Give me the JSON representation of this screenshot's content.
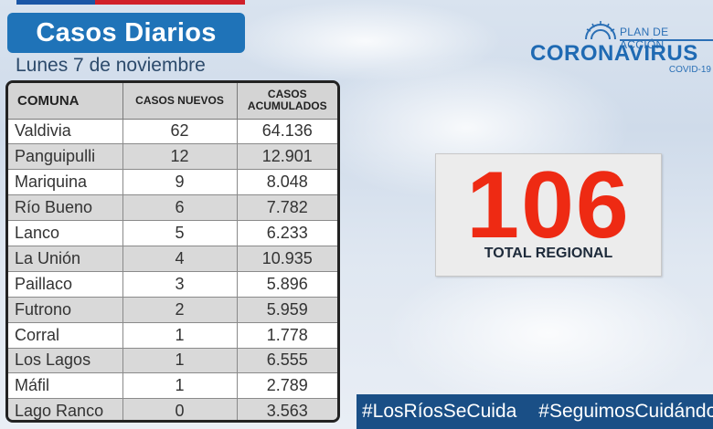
{
  "header": {
    "title": "Casos Diarios",
    "date": "Lunes 7  de noviembre"
  },
  "colors": {
    "title_bg": "#1f73b8",
    "total_number": "#ee2a13",
    "hashtag_bar": "#1a4f86",
    "flag_blue": "#1a56a6",
    "flag_red": "#d0202a"
  },
  "table": {
    "headers": {
      "comuna": "COMUNA",
      "nuevos": "CASOS NUEVOS",
      "acumulados_1": "CASOS",
      "acumulados_2": "ACUMULADOS"
    },
    "rows": [
      {
        "comuna": "Valdivia",
        "nuevos": "62",
        "acumulados": "64.136"
      },
      {
        "comuna": "Panguipulli",
        "nuevos": "12",
        "acumulados": "12.901"
      },
      {
        "comuna": "Mariquina",
        "nuevos": "9",
        "acumulados": "8.048"
      },
      {
        "comuna": "Río Bueno",
        "nuevos": "6",
        "acumulados": "7.782"
      },
      {
        "comuna": "Lanco",
        "nuevos": "5",
        "acumulados": "6.233"
      },
      {
        "comuna": "La Unión",
        "nuevos": "4",
        "acumulados": "10.935"
      },
      {
        "comuna": "Paillaco",
        "nuevos": "3",
        "acumulados": "5.896"
      },
      {
        "comuna": "Futrono",
        "nuevos": "2",
        "acumulados": "5.959"
      },
      {
        "comuna": "Corral",
        "nuevos": "1",
        "acumulados": "1.778"
      },
      {
        "comuna": "Los Lagos",
        "nuevos": "1",
        "acumulados": "6.555"
      },
      {
        "comuna": "Máfil",
        "nuevos": "1",
        "acumulados": "2.789"
      },
      {
        "comuna": "Lago Ranco",
        "nuevos": "0",
        "acumulados": "3.563"
      }
    ]
  },
  "logo": {
    "plan": "PLAN DE ACCIÓN",
    "name": "CORONAVIRUS",
    "sub": "COVID-19",
    "icon": "government-sun-icon"
  },
  "total": {
    "value": "106",
    "label": "TOTAL REGIONAL"
  },
  "hashtags": [
    "#LosRíosSeCuida",
    "#SeguimosCuidándonos"
  ]
}
